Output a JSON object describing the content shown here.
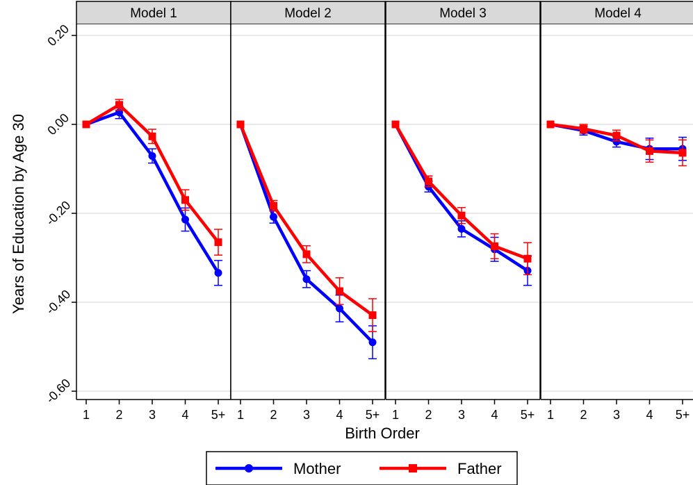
{
  "chart_data": {
    "type": "line",
    "xlabel": "Birth Order",
    "ylabel": "Years of Education by Age 30",
    "categories": [
      "1",
      "2",
      "3",
      "4",
      "5+"
    ],
    "yticks": [
      "0.20",
      "0.00",
      "-0.20",
      "-0.40",
      "-0.60"
    ],
    "ytick_values": [
      0.2,
      0.0,
      -0.2,
      -0.4,
      -0.6
    ],
    "ylim": [
      -0.62,
      0.22
    ],
    "grid": "horizontal",
    "legend_position": "bottom",
    "colors": {
      "Mother": "#0000ff",
      "Father": "#ff0000",
      "strip": "#d9d9d9",
      "grid": "#d9d9d9"
    },
    "panels": [
      {
        "title": "Model 1",
        "series": [
          {
            "name": "Mother",
            "marker": "circle",
            "values": [
              0.0,
              0.027,
              -0.071,
              -0.214,
              -0.334
            ],
            "ci_low": [
              0.0,
              0.013,
              -0.087,
              -0.24,
              -0.362
            ],
            "ci_high": [
              0.0,
              0.041,
              -0.055,
              -0.188,
              -0.306
            ]
          },
          {
            "name": "Father",
            "marker": "square",
            "values": [
              0.0,
              0.044,
              -0.027,
              -0.17,
              -0.265
            ],
            "ci_low": [
              0.0,
              0.032,
              -0.043,
              -0.193,
              -0.294
            ],
            "ci_high": [
              0.0,
              0.056,
              -0.011,
              -0.147,
              -0.236
            ]
          }
        ]
      },
      {
        "title": "Model 2",
        "series": [
          {
            "name": "Mother",
            "marker": "circle",
            "values": [
              0.0,
              -0.208,
              -0.348,
              -0.414,
              -0.49
            ],
            "ci_low": [
              0.0,
              -0.222,
              -0.367,
              -0.444,
              -0.527
            ],
            "ci_high": [
              0.0,
              -0.194,
              -0.329,
              -0.384,
              -0.453
            ]
          },
          {
            "name": "Father",
            "marker": "square",
            "values": [
              0.0,
              -0.183,
              -0.292,
              -0.375,
              -0.429
            ],
            "ci_low": [
              0.0,
              -0.195,
              -0.311,
              -0.405,
              -0.466
            ],
            "ci_high": [
              0.0,
              -0.171,
              -0.273,
              -0.345,
              -0.392
            ]
          }
        ]
      },
      {
        "title": "Model 3",
        "series": [
          {
            "name": "Mother",
            "marker": "circle",
            "values": [
              0.0,
              -0.14,
              -0.235,
              -0.281,
              -0.329
            ],
            "ci_low": [
              0.0,
              -0.152,
              -0.253,
              -0.308,
              -0.362
            ],
            "ci_high": [
              0.0,
              -0.128,
              -0.217,
              -0.254,
              -0.296
            ]
          },
          {
            "name": "Father",
            "marker": "square",
            "values": [
              0.0,
              -0.128,
              -0.205,
              -0.274,
              -0.302
            ],
            "ci_low": [
              0.0,
              -0.14,
              -0.223,
              -0.302,
              -0.338
            ],
            "ci_high": [
              0.0,
              -0.116,
              -0.187,
              -0.246,
              -0.266
            ]
          }
        ]
      },
      {
        "title": "Model 4",
        "series": [
          {
            "name": "Mother",
            "marker": "circle",
            "values": [
              0.0,
              -0.014,
              -0.039,
              -0.055,
              -0.055
            ],
            "ci_low": [
              0.0,
              -0.024,
              -0.051,
              -0.079,
              -0.081
            ],
            "ci_high": [
              0.0,
              -0.004,
              -0.027,
              -0.031,
              -0.029
            ]
          },
          {
            "name": "Father",
            "marker": "square",
            "values": [
              0.0,
              -0.01,
              -0.025,
              -0.06,
              -0.064
            ],
            "ci_low": [
              0.0,
              -0.02,
              -0.037,
              -0.085,
              -0.093
            ],
            "ci_high": [
              0.0,
              0.0,
              -0.013,
              -0.035,
              -0.035
            ]
          }
        ]
      }
    ],
    "legend": [
      {
        "name": "Mother",
        "marker": "circle"
      },
      {
        "name": "Father",
        "marker": "square"
      }
    ]
  }
}
